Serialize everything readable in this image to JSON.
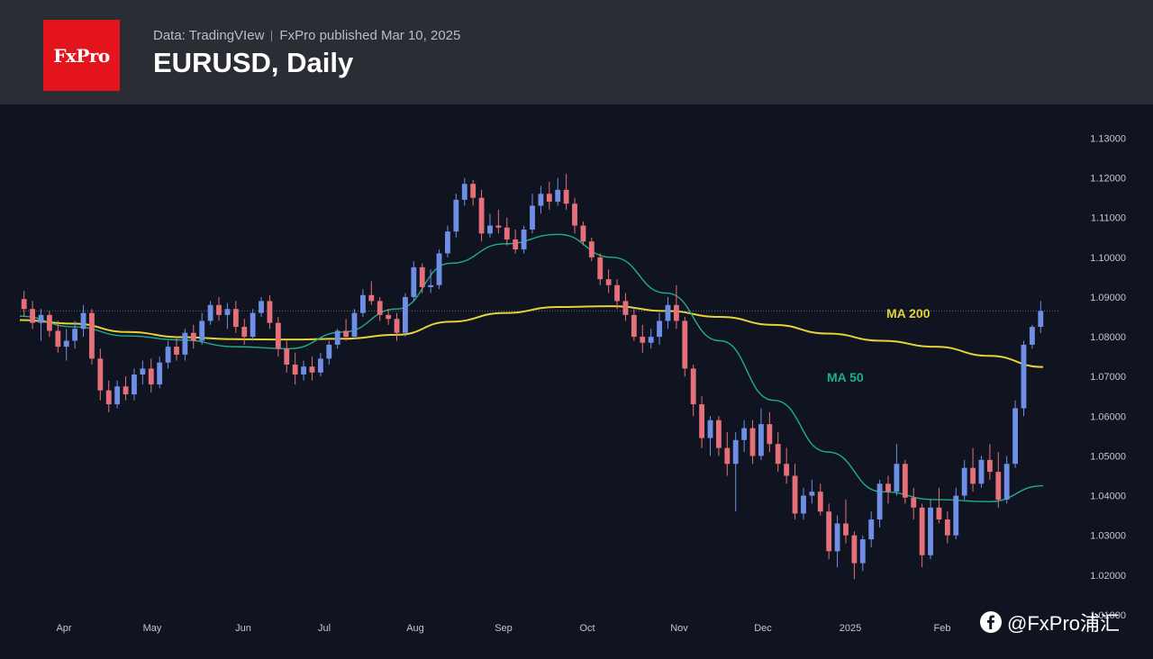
{
  "header": {
    "source": "Data: TradingVIew",
    "publisher": "FxPro published Mar 10, 2025",
    "title": "EURUSD, Daily",
    "logo_text": "FxPro"
  },
  "watermark": {
    "icon": "social-icon",
    "text": "@FxPro浦汇"
  },
  "colors": {
    "header_bg": "#2b2d35",
    "chart_bg": "#0f1420",
    "bull": "#6f8fe6",
    "bear": "#e5707a",
    "ma200": "#e8d23a",
    "ma50": "#1fae8a",
    "brand": "#e3141b"
  },
  "chart_data": {
    "type": "candlestick",
    "symbol": "EURUSD",
    "timeframe": "Daily",
    "x_ticks": [
      "Apr",
      "May",
      "Jun",
      "Jul",
      "Aug",
      "Sep",
      "Oct",
      "Nov",
      "Dec",
      "2025",
      "Feb"
    ],
    "y_ticks": [
      "1.13000",
      "1.12000",
      "1.11000",
      "1.10000",
      "1.09000",
      "1.08000",
      "1.07000",
      "1.06000",
      "1.05000",
      "1.04000",
      "1.03000",
      "1.02000",
      "1.01000"
    ],
    "ylim": [
      1.0093,
      1.1385
    ],
    "last_price": 1.0865,
    "series": [
      {
        "name": "MA 200",
        "values": [
          1.0842,
          1.0833,
          1.0812,
          1.0799,
          1.0794,
          1.0793,
          1.0795,
          1.0805,
          1.0838,
          1.086,
          1.0875,
          1.0877,
          1.0865,
          1.085,
          1.083,
          1.0808,
          1.079,
          1.0775,
          1.0752,
          1.0724
        ]
      },
      {
        "name": "MA 50",
        "values": [
          1.0852,
          1.0825,
          1.0802,
          1.0792,
          1.0775,
          1.077,
          1.0812,
          1.087,
          1.0985,
          1.1034,
          1.1058,
          1.1,
          1.091,
          1.079,
          1.064,
          1.051,
          1.041,
          1.039,
          1.0385,
          1.0425
        ]
      }
    ],
    "ohlc": [
      [
        1.0895,
        1.0915,
        1.085,
        1.087
      ],
      [
        1.087,
        1.089,
        1.082,
        1.0835
      ],
      [
        1.0835,
        1.087,
        1.079,
        1.0855
      ],
      [
        1.0855,
        1.0865,
        1.08,
        1.0815
      ],
      [
        1.0815,
        1.084,
        1.076,
        1.0775
      ],
      [
        1.0775,
        1.082,
        1.074,
        1.079
      ],
      [
        1.079,
        1.084,
        1.077,
        1.082
      ],
      [
        1.082,
        1.088,
        1.08,
        1.086
      ],
      [
        1.086,
        1.087,
        1.073,
        1.0745
      ],
      [
        1.0745,
        1.077,
        1.064,
        1.0665
      ],
      [
        1.0665,
        1.069,
        1.061,
        1.063
      ],
      [
        1.063,
        1.069,
        1.062,
        1.0675
      ],
      [
        1.0675,
        1.07,
        1.064,
        1.0655
      ],
      [
        1.0655,
        1.072,
        1.064,
        1.0705
      ],
      [
        1.0705,
        1.074,
        1.068,
        1.072
      ],
      [
        1.072,
        1.0745,
        1.066,
        1.068
      ],
      [
        1.068,
        1.075,
        1.067,
        1.0735
      ],
      [
        1.0735,
        1.079,
        1.072,
        1.0775
      ],
      [
        1.0775,
        1.08,
        1.074,
        1.0755
      ],
      [
        1.0755,
        1.082,
        1.074,
        1.081
      ],
      [
        1.081,
        1.083,
        1.077,
        1.079
      ],
      [
        1.079,
        1.086,
        1.078,
        1.084
      ],
      [
        1.084,
        1.089,
        1.083,
        1.088
      ],
      [
        1.088,
        1.09,
        1.084,
        1.0855
      ],
      [
        1.0855,
        1.0885,
        1.082,
        1.087
      ],
      [
        1.087,
        1.089,
        1.081,
        1.0825
      ],
      [
        1.0825,
        1.0845,
        1.078,
        1.08
      ],
      [
        1.08,
        1.087,
        1.079,
        1.086
      ],
      [
        1.086,
        1.09,
        1.085,
        1.089
      ],
      [
        1.089,
        1.0905,
        1.082,
        1.0835
      ],
      [
        1.0835,
        1.085,
        1.075,
        1.077
      ],
      [
        1.077,
        1.079,
        1.071,
        1.073
      ],
      [
        1.073,
        1.076,
        1.068,
        1.0705
      ],
      [
        1.0705,
        1.074,
        1.069,
        1.0725
      ],
      [
        1.0725,
        1.075,
        1.069,
        1.071
      ],
      [
        1.071,
        1.076,
        1.07,
        1.0745
      ],
      [
        1.0745,
        1.079,
        1.073,
        1.078
      ],
      [
        1.078,
        1.082,
        1.077,
        1.0815
      ],
      [
        1.0815,
        1.0845,
        1.079,
        1.08
      ],
      [
        1.08,
        1.087,
        1.0795,
        1.086
      ],
      [
        1.086,
        1.092,
        1.085,
        1.0905
      ],
      [
        1.0905,
        1.094,
        1.088,
        1.089
      ],
      [
        1.089,
        1.09,
        1.084,
        1.0855
      ],
      [
        1.0855,
        1.087,
        1.083,
        1.0845
      ],
      [
        1.0845,
        1.086,
        1.079,
        1.081
      ],
      [
        1.081,
        1.091,
        1.08,
        1.09
      ],
      [
        1.09,
        1.099,
        1.089,
        1.0975
      ],
      [
        1.0975,
        1.0985,
        1.091,
        1.0925
      ],
      [
        1.0925,
        1.097,
        1.091,
        1.093
      ],
      [
        1.093,
        1.102,
        1.092,
        1.101
      ],
      [
        1.101,
        1.108,
        1.1,
        1.1065
      ],
      [
        1.1065,
        1.116,
        1.105,
        1.1145
      ],
      [
        1.1145,
        1.12,
        1.113,
        1.1185
      ],
      [
        1.1185,
        1.1195,
        1.113,
        1.115
      ],
      [
        1.115,
        1.117,
        1.104,
        1.106
      ],
      [
        1.106,
        1.111,
        1.105,
        1.108
      ],
      [
        1.108,
        1.112,
        1.106,
        1.1075
      ],
      [
        1.1075,
        1.11,
        1.103,
        1.1045
      ],
      [
        1.1045,
        1.107,
        1.101,
        1.102
      ],
      [
        1.102,
        1.108,
        1.101,
        1.107
      ],
      [
        1.107,
        1.116,
        1.106,
        1.113
      ],
      [
        1.113,
        1.118,
        1.111,
        1.116
      ],
      [
        1.116,
        1.119,
        1.112,
        1.114
      ],
      [
        1.114,
        1.12,
        1.113,
        1.117
      ],
      [
        1.117,
        1.121,
        1.112,
        1.1135
      ],
      [
        1.1135,
        1.115,
        1.106,
        1.108
      ],
      [
        1.108,
        1.109,
        1.103,
        1.104
      ],
      [
        1.104,
        1.105,
        1.099,
        1.1
      ],
      [
        1.1,
        1.101,
        1.093,
        1.0945
      ],
      [
        1.0945,
        1.097,
        1.091,
        1.093
      ],
      [
        1.093,
        1.0945,
        1.087,
        1.089
      ],
      [
        1.089,
        1.091,
        1.084,
        1.0855
      ],
      [
        1.0855,
        1.087,
        1.079,
        1.08
      ],
      [
        1.08,
        1.083,
        1.076,
        1.0785
      ],
      [
        1.0785,
        1.082,
        1.077,
        1.08
      ],
      [
        1.08,
        1.086,
        1.078,
        1.084
      ],
      [
        1.084,
        1.09,
        1.082,
        1.088
      ],
      [
        1.088,
        1.093,
        1.082,
        1.084
      ],
      [
        1.084,
        1.085,
        1.07,
        1.072
      ],
      [
        1.072,
        1.073,
        1.06,
        1.063
      ],
      [
        1.063,
        1.065,
        1.052,
        1.0545
      ],
      [
        1.0545,
        1.06,
        1.05,
        1.059
      ],
      [
        1.059,
        1.06,
        1.05,
        1.052
      ],
      [
        1.052,
        1.056,
        1.045,
        1.048
      ],
      [
        1.048,
        1.056,
        1.036,
        1.054
      ],
      [
        1.054,
        1.059,
        1.051,
        1.057
      ],
      [
        1.057,
        1.059,
        1.048,
        1.05
      ],
      [
        1.05,
        1.062,
        1.049,
        1.058
      ],
      [
        1.058,
        1.061,
        1.051,
        1.053
      ],
      [
        1.053,
        1.056,
        1.046,
        1.048
      ],
      [
        1.048,
        1.052,
        1.043,
        1.045
      ],
      [
        1.045,
        1.048,
        1.034,
        1.0355
      ],
      [
        1.0355,
        1.042,
        1.034,
        1.04
      ],
      [
        1.04,
        1.044,
        1.038,
        1.041
      ],
      [
        1.041,
        1.043,
        1.035,
        1.036
      ],
      [
        1.036,
        1.038,
        1.024,
        1.026
      ],
      [
        1.026,
        1.035,
        1.022,
        1.033
      ],
      [
        1.033,
        1.039,
        1.028,
        1.03
      ],
      [
        1.03,
        1.031,
        1.019,
        1.023
      ],
      [
        1.023,
        1.03,
        1.021,
        1.029
      ],
      [
        1.029,
        1.036,
        1.027,
        1.034
      ],
      [
        1.034,
        1.044,
        1.032,
        1.043
      ],
      [
        1.043,
        1.045,
        1.038,
        1.041
      ],
      [
        1.041,
        1.053,
        1.04,
        1.048
      ],
      [
        1.048,
        1.049,
        1.038,
        1.0395
      ],
      [
        1.0395,
        1.042,
        1.034,
        1.037
      ],
      [
        1.037,
        1.038,
        1.022,
        1.025
      ],
      [
        1.025,
        1.039,
        1.024,
        1.037
      ],
      [
        1.037,
        1.042,
        1.033,
        1.034
      ],
      [
        1.034,
        1.036,
        1.028,
        1.03
      ],
      [
        1.03,
        1.042,
        1.029,
        1.04
      ],
      [
        1.04,
        1.049,
        1.039,
        1.047
      ],
      [
        1.047,
        1.052,
        1.041,
        1.043
      ],
      [
        1.043,
        1.05,
        1.042,
        1.049
      ],
      [
        1.049,
        1.053,
        1.044,
        1.046
      ],
      [
        1.046,
        1.051,
        1.037,
        1.039
      ],
      [
        1.039,
        1.05,
        1.038,
        1.048
      ],
      [
        1.048,
        1.064,
        1.047,
        1.062
      ],
      [
        1.062,
        1.079,
        1.06,
        1.078
      ],
      [
        1.078,
        1.083,
        1.077,
        1.0825
      ],
      [
        1.0825,
        1.089,
        1.081,
        1.0865
      ]
    ],
    "annotations": [
      "MA 200",
      "MA 50"
    ],
    "grid": false
  }
}
